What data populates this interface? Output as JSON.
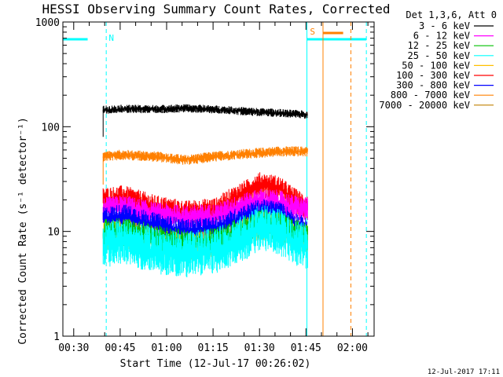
{
  "chart_data": {
    "type": "line",
    "title": "HESSI Observing Summary Count Rates, Corrected",
    "xlabel": "Start Time (12-Jul-17 00:26:02)",
    "ylabel": "Corrected Count Rate (s⁻¹ detector⁻¹)",
    "xlim_minutes": [
      0.5,
      101.0
    ],
    "ylim": [
      1,
      1000
    ],
    "yscale": "log",
    "xticks": [
      {
        "m": 4,
        "label": "00:30"
      },
      {
        "m": 19,
        "label": "00:45"
      },
      {
        "m": 34,
        "label": "01:00"
      },
      {
        "m": 49,
        "label": "01:15"
      },
      {
        "m": 64,
        "label": "01:30"
      },
      {
        "m": 79,
        "label": "01:45"
      },
      {
        "m": 94,
        "label": "02:00"
      }
    ],
    "yticks": [
      {
        "v": 1,
        "label": "1"
      },
      {
        "v": 10,
        "label": "10"
      },
      {
        "v": 100,
        "label": "100"
      },
      {
        "v": 1000,
        "label": "1000"
      }
    ],
    "legend_title": "Det 1,3,6, Att 0",
    "legend_position": "right",
    "series": [
      {
        "name": "3 - 6 keV",
        "color": "#000000",
        "x": [
          13.5,
          20,
          30,
          40,
          50,
          60,
          70,
          79.5
        ],
        "y": [
          145,
          148,
          147,
          150,
          146,
          140,
          135,
          130
        ]
      },
      {
        "name": "6 - 12 keV",
        "color": "#ff00ff",
        "x": [
          13.5,
          20,
          30,
          40,
          50,
          60,
          64,
          70,
          75,
          79.5
        ],
        "y": [
          16,
          17,
          14.5,
          13.5,
          14,
          18,
          19.5,
          19,
          17,
          16
        ]
      },
      {
        "name": "12 - 25 keV",
        "color": "#00c000",
        "x": [
          13.5,
          20,
          30,
          40,
          50,
          60,
          64,
          70,
          75,
          79.5
        ],
        "y": [
          9.5,
          10,
          8.5,
          7.5,
          8,
          10.5,
          12,
          11.5,
          9.5,
          9
        ]
      },
      {
        "name": "25 - 50 keV",
        "color": "#00ffff",
        "x": [
          13.5,
          20,
          30,
          40,
          50,
          60,
          64,
          70,
          75,
          79.5
        ],
        "y": [
          7.5,
          8,
          6.5,
          6,
          6.5,
          9,
          11,
          10,
          8,
          7
        ]
      },
      {
        "name": "50 - 100 keV",
        "color": "#ffc000",
        "x": [
          13.5,
          20,
          30,
          40,
          50,
          60,
          64,
          70,
          75,
          79.5
        ],
        "y": [
          9,
          9.5,
          8,
          7,
          7.5,
          10,
          11.5,
          11,
          9,
          8.5
        ]
      },
      {
        "name": "100 - 300 keV",
        "color": "#ff0000",
        "x": [
          13.5,
          20,
          30,
          40,
          50,
          60,
          64,
          70,
          75,
          79.5
        ],
        "y": [
          20,
          21,
          17,
          15,
          16,
          24,
          28,
          26,
          20,
          17
        ]
      },
      {
        "name": "300 - 800 keV",
        "color": "#0000ff",
        "x": [
          13.5,
          20,
          30,
          40,
          50,
          60,
          64,
          70,
          75,
          79.5
        ],
        "y": [
          13,
          14,
          11.5,
          10,
          10.5,
          14,
          15.5,
          15,
          12,
          10
        ]
      },
      {
        "name": "800 - 7000 keV",
        "color": "#ff8000",
        "x": [
          13.5,
          20,
          30,
          40,
          50,
          60,
          70,
          79.5
        ],
        "y": [
          52,
          54,
          52,
          48,
          52,
          55,
          58,
          58
        ]
      },
      {
        "name": "7000 - 20000 keV",
        "color": "#c08000",
        "x": [],
        "y": []
      }
    ],
    "flags": [
      {
        "label": "N",
        "color": "#00ffff"
      },
      {
        "label": "S",
        "color": "#ff8000"
      }
    ]
  },
  "timestamp": "12-Jul-2017 17:11"
}
